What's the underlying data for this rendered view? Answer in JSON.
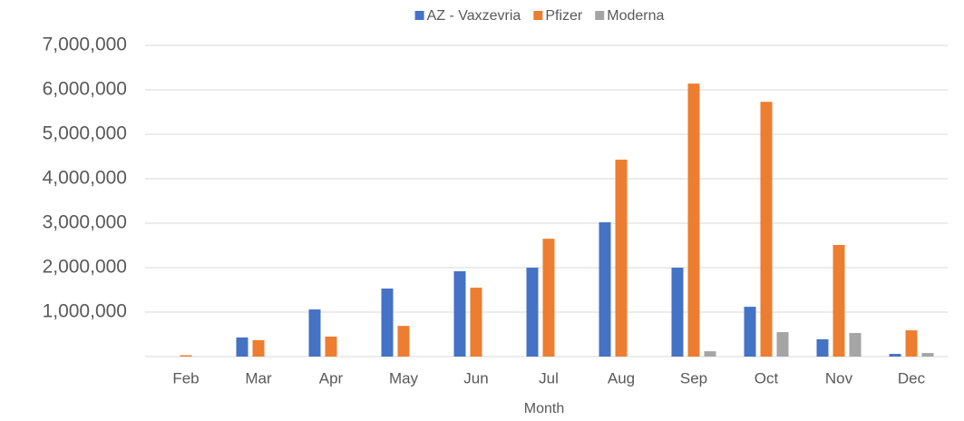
{
  "chart_data": {
    "type": "bar",
    "x_label": "Month",
    "categories": [
      "Feb",
      "Mar",
      "Apr",
      "May",
      "Jun",
      "Jul",
      "Aug",
      "Sep",
      "Oct",
      "Nov",
      "Dec"
    ],
    "series": [
      {
        "name": "AZ - Vaxzevria",
        "color": "#4472c4",
        "values": [
          0,
          430000,
          1060000,
          1530000,
          1920000,
          2000000,
          3020000,
          2000000,
          1120000,
          390000,
          60000
        ]
      },
      {
        "name": "Pfizer",
        "color": "#ed7d31",
        "values": [
          30000,
          370000,
          450000,
          690000,
          1550000,
          2650000,
          4430000,
          6140000,
          5730000,
          2510000,
          590000
        ]
      },
      {
        "name": "Moderna",
        "color": "#a5a5a5",
        "values": [
          0,
          0,
          0,
          0,
          0,
          0,
          0,
          120000,
          550000,
          530000,
          80000
        ]
      }
    ],
    "ylim": [
      0,
      7000000
    ],
    "yticks": [
      {
        "value": 1000000,
        "label": "1,000,000"
      },
      {
        "value": 2000000,
        "label": "2,000,000"
      },
      {
        "value": 3000000,
        "label": "3,000,000"
      },
      {
        "value": 4000000,
        "label": "4,000,000"
      },
      {
        "value": 5000000,
        "label": "5,000,000"
      },
      {
        "value": 6000000,
        "label": "6,000,000"
      },
      {
        "value": 7000000,
        "label": "7,000,000"
      }
    ],
    "grid": true,
    "legend": "top"
  }
}
